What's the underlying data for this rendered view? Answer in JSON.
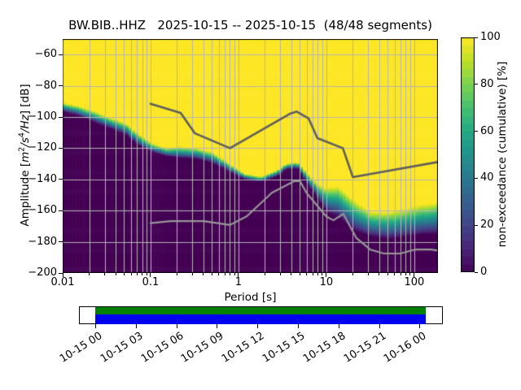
{
  "title": "BW.BIB..HHZ   2025-10-15 -- 2025-10-15  (48/48 segments)",
  "segments": "48/48 segments",
  "colors": {
    "background": "#ffffff",
    "grid": "#b5b5b5",
    "axis": "#000000",
    "high_noise_model_line": "#5e5e5e",
    "low_noise_model_line": "#979797",
    "viridis_stops": [
      "#440154",
      "#482475",
      "#414487",
      "#355f8d",
      "#2a788e",
      "#21918c",
      "#22a884",
      "#44bf70",
      "#7ad151",
      "#bddf26",
      "#fde725"
    ],
    "coverage_green": "#008000",
    "coverage_blue": "#0000ee"
  },
  "axes": {
    "x": {
      "label": "Period [s]",
      "scale": "log",
      "major_ticks": [
        {
          "label": "0.01",
          "value": 0.01
        },
        {
          "label": "0.1",
          "value": 0.1
        },
        {
          "label": "1",
          "value": 1
        },
        {
          "label": "10",
          "value": 10
        },
        {
          "label": "100",
          "value": 100
        }
      ]
    },
    "y": {
      "label": {
        "prefix": "Amplitude [",
        "m": "m",
        "m_exp": "2",
        "slash1": "/",
        "s": "s",
        "s_exp": "4",
        "rest": "/Hz",
        "suffix": "] [dB]"
      },
      "ticks": [
        {
          "label": "−60",
          "value": -60
        },
        {
          "label": "−80",
          "value": -80
        },
        {
          "label": "−100",
          "value": -100
        },
        {
          "label": "−120",
          "value": -120
        },
        {
          "label": "−140",
          "value": -140
        },
        {
          "label": "−160",
          "value": -160
        },
        {
          "label": "−180",
          "value": -180
        },
        {
          "label": "−200",
          "value": -200
        }
      ]
    }
  },
  "colorbar": {
    "label": "non-exceedance (cumulative) [%]",
    "levels": 30,
    "ticks": [
      {
        "label": "0",
        "value": 0
      },
      {
        "label": "20",
        "value": 20
      },
      {
        "label": "40",
        "value": 40
      },
      {
        "label": "60",
        "value": 60
      },
      {
        "label": "80",
        "value": 80
      },
      {
        "label": "100",
        "value": 100
      }
    ]
  },
  "timeline": {
    "tick_labels": [
      "10-15 00",
      "10-15 03",
      "10-15 06",
      "10-15 09",
      "10-15 12",
      "10-15 15",
      "10-15 18",
      "10-15 21",
      "10-16 00"
    ]
  },
  "chart_data": {
    "type": "heatmap",
    "title": "BW.BIB..HHZ   2025-10-15 -- 2025-10-15  (48/48 segments)",
    "xlabel": "Period [s]",
    "ylabel": "Amplitude [m^2/s^4/Hz] [dB]",
    "xscale": "log",
    "xlim": [
      0.01,
      186
    ],
    "ylim": [
      -200,
      -50
    ],
    "colorbar_label": "non-exceedance (cumulative) [%]",
    "clim": [
      0,
      100
    ],
    "colormap": "viridis",
    "grid": true,
    "cdf_band": {
      "description": "cumulative non-exceedance rises from 0% (below lower_db) to 100% (above upper_db) at each period",
      "periods": [
        0.01,
        0.015,
        0.022,
        0.035,
        0.053,
        0.065,
        0.08,
        0.105,
        0.15,
        0.21,
        0.33,
        0.5,
        0.77,
        1.17,
        1.8,
        2.76,
        3.5,
        4.7,
        6.5,
        8.0,
        10.0,
        13.6,
        21.0,
        32.0,
        49.0,
        75.0,
        115.0,
        186.0
      ],
      "upper_db": [
        -91.0,
        -93.0,
        -96.0,
        -100.5,
        -104.2,
        -108.5,
        -112.5,
        -117.0,
        -119.9,
        -119.0,
        -119.9,
        -122.5,
        -129.5,
        -136.4,
        -138.4,
        -134.0,
        -130.0,
        -129.0,
        -138.0,
        -143.2,
        -145.5,
        -144.2,
        -153.9,
        -160.8,
        -161.2,
        -159.1,
        -156.5,
        -154.7
      ],
      "lower_db": [
        -96.5,
        -99.0,
        -103.0,
        -107.5,
        -111.5,
        -116.0,
        -119.5,
        -122.5,
        -125.1,
        -126.3,
        -126.9,
        -129.5,
        -134.7,
        -139.9,
        -141.6,
        -138.2,
        -133.5,
        -132.9,
        -145.1,
        -152.0,
        -160.8,
        -164.3,
        -173.0,
        -176.5,
        -178.3,
        -177.4,
        -175.6,
        -174.9
      ],
      "period_bins": 114,
      "db_bin": 1
    },
    "noise_models": {
      "high": {
        "name": "high noise model",
        "points": [
          [
            0.1,
            -91.5
          ],
          [
            0.22,
            -97.4
          ],
          [
            0.32,
            -110.5
          ],
          [
            0.8,
            -120.0
          ],
          [
            3.8,
            -98.1
          ],
          [
            4.6,
            -96.5
          ],
          [
            6.3,
            -101.0
          ],
          [
            7.9,
            -113.5
          ],
          [
            15.4,
            -120.0
          ],
          [
            20.0,
            -138.5
          ],
          [
            354.8,
            -126.0
          ]
        ]
      },
      "low": {
        "name": "low noise model",
        "points": [
          [
            0.1,
            -168.0
          ],
          [
            0.17,
            -166.7
          ],
          [
            0.4,
            -166.7
          ],
          [
            0.8,
            -169.2
          ],
          [
            1.24,
            -163.7
          ],
          [
            2.4,
            -148.6
          ],
          [
            4.3,
            -141.1
          ],
          [
            5.0,
            -141.1
          ],
          [
            6.0,
            -149.0
          ],
          [
            10.0,
            -163.8
          ],
          [
            12.0,
            -166.2
          ],
          [
            15.6,
            -162.1
          ],
          [
            21.9,
            -177.5
          ],
          [
            31.6,
            -185.0
          ],
          [
            45.0,
            -187.5
          ],
          [
            70.0,
            -187.5
          ],
          [
            101.0,
            -185.0
          ],
          [
            154.0,
            -185.0
          ],
          [
            328.0,
            -187.5
          ]
        ]
      }
    }
  }
}
